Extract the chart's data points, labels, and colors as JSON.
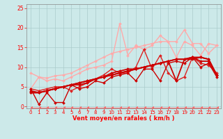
{
  "xlabel": "Vent moyen/en rafales ( km/h )",
  "xlim": [
    -0.5,
    23.5
  ],
  "ylim": [
    -0.5,
    26
  ],
  "xticks": [
    0,
    1,
    2,
    3,
    4,
    5,
    6,
    7,
    8,
    9,
    10,
    11,
    12,
    13,
    14,
    15,
    16,
    17,
    18,
    19,
    20,
    21,
    22,
    23
  ],
  "yticks": [
    0,
    5,
    10,
    15,
    20,
    25
  ],
  "bg_color": "#cce9e9",
  "grid_color": "#aacccc",
  "lines": [
    {
      "x": [
        0,
        1,
        2,
        3,
        4,
        5,
        6,
        7,
        8,
        9,
        10,
        11,
        12,
        13,
        14,
        15,
        16,
        17,
        18,
        19,
        20,
        21,
        22,
        23
      ],
      "y": [
        8.5,
        7.5,
        7.2,
        7.8,
        8.0,
        8.5,
        9.5,
        10.5,
        11.5,
        12.5,
        13.5,
        14.0,
        14.5,
        15.0,
        15.5,
        16.0,
        16.5,
        16.5,
        16.5,
        19.5,
        16.0,
        16.0,
        13.5,
        15.5
      ],
      "color": "#ffaaaa",
      "lw": 1.0,
      "marker": "D",
      "ms": 2.0
    },
    {
      "x": [
        0,
        1,
        2,
        3,
        4,
        5,
        6,
        7,
        8,
        9,
        10,
        11,
        12,
        13,
        14,
        15,
        16,
        17,
        18,
        19,
        20,
        21,
        22,
        23
      ],
      "y": [
        4.5,
        7.5,
        6.5,
        7.0,
        6.5,
        7.5,
        8.5,
        9.5,
        10.0,
        10.5,
        11.5,
        21.0,
        13.0,
        15.5,
        14.5,
        15.5,
        18.0,
        16.5,
        12.5,
        16.5,
        15.5,
        13.0,
        16.0,
        15.5
      ],
      "color": "#ffaaaa",
      "lw": 1.0,
      "marker": "D",
      "ms": 2.0
    },
    {
      "x": [
        0,
        1,
        2,
        3,
        4,
        5,
        6,
        7,
        8,
        9,
        10,
        11,
        12,
        13,
        14,
        15,
        16,
        17,
        18,
        19,
        20,
        21,
        22,
        23
      ],
      "y": [
        4.5,
        4.0,
        4.5,
        5.0,
        5.0,
        4.0,
        5.0,
        6.0,
        7.0,
        8.0,
        9.5,
        8.5,
        8.5,
        10.0,
        14.5,
        9.5,
        13.0,
        8.5,
        6.5,
        7.5,
        12.5,
        11.0,
        10.5,
        8.5
      ],
      "color": "#dd2222",
      "lw": 1.0,
      "marker": "D",
      "ms": 2.0
    },
    {
      "x": [
        0,
        1,
        2,
        3,
        4,
        5,
        6,
        7,
        8,
        9,
        10,
        11,
        12,
        13,
        14,
        15,
        16,
        17,
        18,
        19,
        20,
        21,
        22,
        23
      ],
      "y": [
        4.0,
        3.5,
        4.0,
        4.5,
        5.0,
        5.5,
        5.5,
        6.0,
        7.0,
        7.5,
        8.0,
        8.5,
        9.0,
        9.5,
        10.0,
        10.5,
        11.0,
        11.5,
        6.5,
        12.0,
        12.5,
        11.5,
        11.5,
        8.0
      ],
      "color": "#cc0000",
      "lw": 1.3,
      "marker": "D",
      "ms": 2.0
    },
    {
      "x": [
        0,
        1,
        2,
        3,
        4,
        5,
        6,
        7,
        8,
        9,
        10,
        11,
        12,
        13,
        14,
        15,
        16,
        17,
        18,
        19,
        20,
        21,
        22,
        23
      ],
      "y": [
        3.5,
        3.5,
        4.0,
        4.5,
        5.0,
        5.5,
        6.0,
        6.5,
        7.0,
        7.5,
        8.0,
        8.5,
        9.0,
        9.5,
        10.0,
        10.5,
        11.0,
        11.5,
        12.0,
        12.0,
        12.5,
        12.5,
        12.0,
        8.0
      ],
      "color": "#cc0000",
      "lw": 1.3,
      "marker": "D",
      "ms": 2.0
    },
    {
      "x": [
        0,
        1,
        2,
        3,
        4,
        5,
        6,
        7,
        8,
        9,
        10,
        11,
        12,
        13,
        14,
        15,
        16,
        17,
        18,
        19,
        20,
        21,
        22,
        23
      ],
      "y": [
        3.5,
        3.5,
        4.0,
        4.5,
        5.0,
        5.5,
        6.0,
        6.5,
        7.0,
        7.5,
        8.5,
        9.0,
        9.5,
        9.5,
        10.0,
        10.5,
        11.0,
        11.5,
        12.0,
        12.0,
        12.0,
        12.5,
        12.0,
        8.0
      ],
      "color": "#cc0000",
      "lw": 1.3,
      "marker": "D",
      "ms": 2.0
    },
    {
      "x": [
        0,
        1,
        2,
        3,
        4,
        5,
        6,
        7,
        8,
        9,
        10,
        11,
        12,
        13,
        14,
        15,
        16,
        17,
        18,
        19,
        20,
        21,
        22,
        23
      ],
      "y": [
        4.5,
        0.5,
        3.5,
        1.0,
        1.0,
        5.5,
        4.5,
        5.0,
        6.5,
        6.0,
        7.5,
        8.0,
        8.5,
        6.5,
        9.5,
        9.5,
        6.5,
        11.0,
        11.5,
        11.0,
        12.5,
        10.0,
        11.0,
        7.5
      ],
      "color": "#cc0000",
      "lw": 1.0,
      "marker": "D",
      "ms": 2.0
    },
    {
      "x": [
        0,
        1,
        2,
        3,
        4,
        5,
        6,
        7,
        8,
        9,
        10,
        11,
        12,
        13,
        14,
        15,
        16,
        17,
        18,
        19,
        20,
        21,
        22,
        23
      ],
      "y": [
        -0.3,
        -0.3,
        -0.3,
        -0.3,
        -0.3,
        -0.3,
        -0.3,
        -0.3,
        -0.3,
        -0.3,
        -0.3,
        -0.3,
        -0.3,
        -0.3,
        -0.3,
        -0.3,
        -0.3,
        -0.3,
        -0.3,
        -0.3,
        -0.3,
        -0.3,
        -0.3,
        -0.3
      ],
      "color": "#ff6666",
      "lw": 0.7,
      "marker": 4,
      "ms": 3.0
    }
  ]
}
